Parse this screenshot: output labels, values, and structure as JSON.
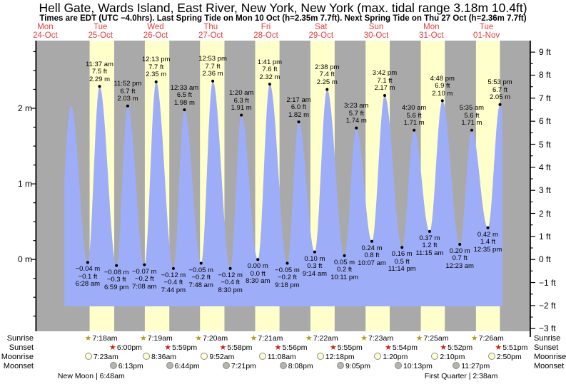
{
  "header": {
    "title": "Hell Gate, Wards Island, East River, New York, New York (max. tidal range 3.18m 10.4ft)",
    "subtitle": "Times are EDT (UTC −4.0hrs). Last Spring Tide on Mon 10 Oct (h=2.35m 7.7ft). Next Spring Tide on Thu 27 Oct (h=2.36m 7.7ft)"
  },
  "days": [
    {
      "name": "Mon",
      "date": "24-Oct"
    },
    {
      "name": "Tue",
      "date": "25-Oct"
    },
    {
      "name": "Wed",
      "date": "26-Oct"
    },
    {
      "name": "Thu",
      "date": "27-Oct"
    },
    {
      "name": "Fri",
      "date": "28-Oct"
    },
    {
      "name": "Sat",
      "date": "29-Oct"
    },
    {
      "name": "Sun",
      "date": "30-Oct"
    },
    {
      "name": "Mon",
      "date": "31-Oct"
    },
    {
      "name": "Tue",
      "date": "01-Nov"
    }
  ],
  "chart_data": {
    "type": "area",
    "title": "Tide height curve for Hell Gate, Wards Island, East River",
    "y_axis_left": {
      "unit": "m",
      "tick_values": [
        0,
        1,
        2
      ],
      "tick_labels": [
        "0 m",
        "1 m",
        "2 m"
      ],
      "range_m": [
        -0.95,
        2.9
      ]
    },
    "y_axis_right": {
      "unit": "ft",
      "tick_values": [
        9,
        8,
        7,
        6,
        5,
        4,
        3,
        2,
        1,
        0,
        -1,
        -2,
        -3
      ],
      "tick_labels": [
        "9 ft",
        "8 ft",
        "7 ft",
        "6 ft",
        "5 ft",
        "4 ft",
        "3 ft",
        "2 ft",
        "1 ft",
        "0 ft",
        "−1 ft",
        "−2 ft",
        "−3 ft"
      ],
      "range_ft": [
        -3,
        9
      ]
    },
    "x_axis": {
      "start": "Mon 24-Oct 00:00",
      "days": 9,
      "shading": "yellow = daylight, gray = night"
    },
    "extremes": [
      {
        "type": "low",
        "t": 17.17,
        "height_m": -0.1,
        "lines": null,
        "offscreen": true
      },
      {
        "type": "high",
        "t": 23.2,
        "height_m": 2.04,
        "lines": null
      },
      {
        "type": "low",
        "t": 30.47,
        "height_m": -0.04,
        "lines": [
          "−0.04 m",
          "−0.1 ft",
          "6:28 am"
        ]
      },
      {
        "type": "high",
        "t": 35.62,
        "height_m": 2.29,
        "lines": [
          "11:37 am",
          "7.5 ft",
          "2.29 m"
        ]
      },
      {
        "type": "low",
        "t": 42.98,
        "height_m": -0.08,
        "lines": [
          "−0.08 m",
          "−0.3 ft",
          "6:59 pm"
        ]
      },
      {
        "type": "high",
        "t": 47.87,
        "height_m": 2.03,
        "lines": [
          "11:52 pm",
          "6.7 ft",
          "2.03 m"
        ]
      },
      {
        "type": "low",
        "t": 55.13,
        "height_m": -0.07,
        "lines": [
          "−0.07 m",
          "−0.2 ft",
          "7:08 am"
        ]
      },
      {
        "type": "high",
        "t": 60.22,
        "height_m": 2.35,
        "lines": [
          "12:13 pm",
          "7.7 ft",
          "2.35 m"
        ]
      },
      {
        "type": "low",
        "t": 67.73,
        "height_m": -0.12,
        "lines": [
          "−0.12 m",
          "−0.4 ft",
          "7:44 pm"
        ]
      },
      {
        "type": "high",
        "t": 72.55,
        "height_m": 1.98,
        "lines": [
          "12:33 am",
          "6.5 ft",
          "1.98 m"
        ]
      },
      {
        "type": "low",
        "t": 79.8,
        "height_m": -0.05,
        "lines": [
          "−0.05 m",
          "−0.2 ft",
          "7:48 am"
        ]
      },
      {
        "type": "high",
        "t": 84.88,
        "height_m": 2.36,
        "lines": [
          "12:53 pm",
          "7.7 ft",
          "2.36 m"
        ]
      },
      {
        "type": "low",
        "t": 92.5,
        "height_m": -0.12,
        "lines": [
          "−0.12 m",
          "−0.4 ft",
          "8:30 pm"
        ]
      },
      {
        "type": "high",
        "t": 97.33,
        "height_m": 1.91,
        "lines": [
          "1:20 am",
          "6.3 ft",
          "1.91 m"
        ]
      },
      {
        "type": "low",
        "t": 104.5,
        "height_m": 0.0,
        "lines": [
          "0.00 m",
          "0.0 ft",
          "8:30 am"
        ]
      },
      {
        "type": "high",
        "t": 109.68,
        "height_m": 2.32,
        "lines": [
          "1:41 pm",
          "7.6 ft",
          "2.32 m"
        ]
      },
      {
        "type": "low",
        "t": 117.3,
        "height_m": -0.05,
        "lines": [
          "−0.05 m",
          "−0.2 ft",
          "9:18 pm"
        ]
      },
      {
        "type": "high",
        "t": 122.28,
        "height_m": 1.82,
        "lines": [
          "2:17 am",
          "6.0 ft",
          "1.82 m"
        ]
      },
      {
        "type": "low",
        "t": 129.23,
        "height_m": 0.1,
        "lines": [
          "0.10 m",
          "0.3 ft",
          "9:14 am"
        ]
      },
      {
        "type": "high",
        "t": 134.63,
        "height_m": 2.25,
        "lines": [
          "2:38 pm",
          "7.4 ft",
          "2.25 m"
        ]
      },
      {
        "type": "low",
        "t": 142.18,
        "height_m": 0.05,
        "lines": [
          "0.05 m",
          "0.2 ft",
          "10:11 pm"
        ]
      },
      {
        "type": "high",
        "t": 147.38,
        "height_m": 1.74,
        "lines": [
          "3:23 am",
          "5.7 ft",
          "1.74 m"
        ]
      },
      {
        "type": "low",
        "t": 154.12,
        "height_m": 0.24,
        "lines": [
          "0.24 m",
          "0.8 ft",
          "10:07 am"
        ]
      },
      {
        "type": "high",
        "t": 159.7,
        "height_m": 2.17,
        "lines": [
          "3:42 pm",
          "7.1 ft",
          "2.17 m"
        ]
      },
      {
        "type": "low",
        "t": 167.23,
        "height_m": 0.16,
        "lines": [
          "0.16 m",
          "0.5 ft",
          "11:14 pm"
        ]
      },
      {
        "type": "high",
        "t": 172.5,
        "height_m": 1.71,
        "lines": [
          "4:30 am",
          "5.6 ft",
          "1.71 m"
        ]
      },
      {
        "type": "low",
        "t": 179.25,
        "height_m": 0.37,
        "lines": [
          "0.37 m",
          "1.2 ft",
          "11:15 am"
        ]
      },
      {
        "type": "high",
        "t": 184.8,
        "height_m": 2.1,
        "lines": [
          "4:48 pm",
          "6.9 ft",
          "2.10 m"
        ]
      },
      {
        "type": "low",
        "t": 192.38,
        "height_m": 0.2,
        "lines": [
          "0.20 m",
          "0.7 ft",
          "12:23 am"
        ]
      },
      {
        "type": "high",
        "t": 197.58,
        "height_m": 1.71,
        "lines": [
          "5:35 am",
          "5.6 ft",
          "1.71 m"
        ]
      },
      {
        "type": "low",
        "t": 204.58,
        "height_m": 0.42,
        "lines": [
          "0.42 m",
          "1.4 ft",
          "12:35 pm"
        ]
      },
      {
        "type": "high",
        "t": 209.88,
        "height_m": 2.05,
        "lines": [
          "5:53 pm",
          "6.7 ft",
          "2.05 m"
        ]
      },
      {
        "type": "low",
        "t": 216.5,
        "height_m": 0.3,
        "lines": null,
        "offscreen": true
      }
    ]
  },
  "astro": {
    "row_labels": [
      "Sunrise",
      "Sunset",
      "Moonrise",
      "Moonset"
    ],
    "sunrise": [
      {
        "time": "7:18am",
        "t": 31.3
      },
      {
        "time": "7:19am",
        "t": 55.32
      },
      {
        "time": "7:20am",
        "t": 79.33
      },
      {
        "time": "7:21am",
        "t": 103.35
      },
      {
        "time": "7:22am",
        "t": 127.37
      },
      {
        "time": "7:23am",
        "t": 151.38
      },
      {
        "time": "7:25am",
        "t": 175.42
      },
      {
        "time": "7:26am",
        "t": 199.43
      }
    ],
    "sunset": [
      {
        "time": "6:00pm",
        "t": 42.0
      },
      {
        "time": "5:59pm",
        "t": 65.98
      },
      {
        "time": "5:58pm",
        "t": 89.97
      },
      {
        "time": "5:56pm",
        "t": 113.93
      },
      {
        "time": "5:55pm",
        "t": 137.92
      },
      {
        "time": "5:54pm",
        "t": 161.9
      },
      {
        "time": "5:52pm",
        "t": 185.87
      },
      {
        "time": "5:51pm",
        "t": 209.85
      }
    ],
    "moonrise": [
      {
        "time": "7:23am",
        "t": 31.38
      },
      {
        "time": "8:36am",
        "t": 56.6
      },
      {
        "time": "9:52am",
        "t": 81.87
      },
      {
        "time": "11:08am",
        "t": 107.13
      },
      {
        "time": "12:18pm",
        "t": 132.3
      },
      {
        "time": "1:20pm",
        "t": 157.33
      },
      {
        "time": "2:10pm",
        "t": 182.17
      },
      {
        "time": "2:50pm",
        "t": 206.83
      }
    ],
    "moonset": [
      {
        "time": "6:13pm",
        "t": 42.22
      },
      {
        "time": "6:44pm",
        "t": 66.73
      },
      {
        "time": "7:21pm",
        "t": 91.35
      },
      {
        "time": "8:08pm",
        "t": 116.13
      },
      {
        "time": "9:05pm",
        "t": 141.08
      },
      {
        "time": "10:13pm",
        "t": 166.22
      },
      {
        "time": "11:27pm",
        "t": 191.45
      }
    ],
    "phases": [
      {
        "label": "New Moon | 6:48am",
        "t": 32.0
      },
      {
        "label": "First Quarter | 2:38am",
        "t": 193.0
      }
    ]
  },
  "colors": {
    "night_band": "#a9a9a9",
    "day_band": "#ffffcc",
    "water": "#9eadf7",
    "day_label": "#e63c3c",
    "sunrise_star": "#b19b1e",
    "sunset_star": "#cc2211",
    "moonrise_fill": "#ffffcc",
    "moonset_fill": "#b5b5ad",
    "axis": "#000000"
  }
}
